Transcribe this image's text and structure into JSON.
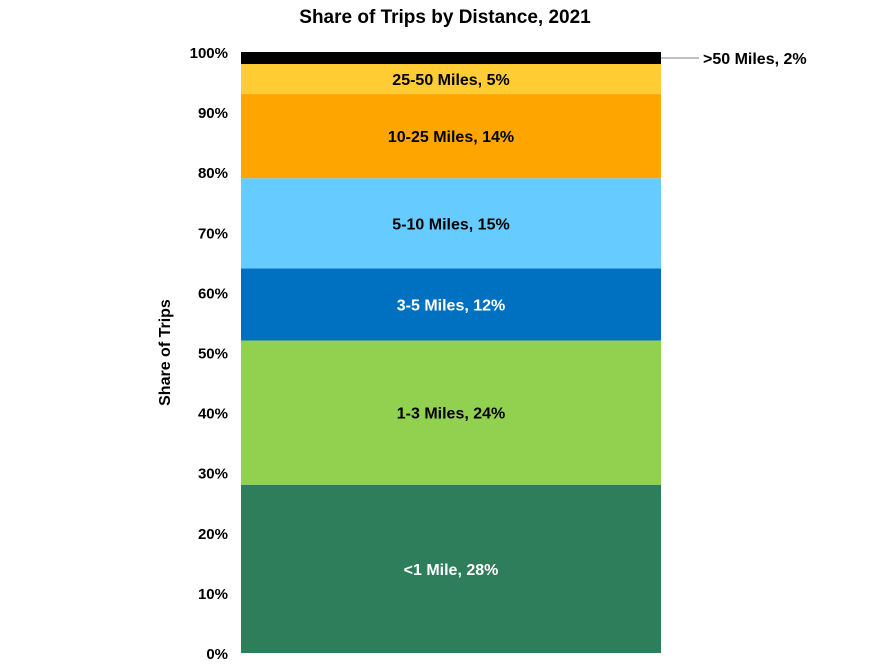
{
  "chart_data": {
    "type": "bar",
    "stacked": true,
    "percent": true,
    "title": "Share of Trips by Distance, 2021",
    "xlabel": "",
    "ylabel": "Share of Trips",
    "ylim": [
      0,
      100
    ],
    "yticks": [
      "0%",
      "10%",
      "20%",
      "30%",
      "40%",
      "50%",
      "60%",
      "70%",
      "80%",
      "90%",
      "100%"
    ],
    "grid": false,
    "legend": "none",
    "categories": [
      ""
    ],
    "series": [
      {
        "name": "<1 Mile",
        "values": [
          28
        ],
        "label": "<1 Mile, 28%",
        "color": "#2e7d5b",
        "label_color": "#ffffff",
        "label_position": "inside"
      },
      {
        "name": "1-3 Miles",
        "values": [
          24
        ],
        "label": "1-3 Miles, 24%",
        "color": "#92d050",
        "label_color": "#000000",
        "label_position": "inside"
      },
      {
        "name": "3-5 Miles",
        "values": [
          12
        ],
        "label": "3-5 Miles, 12%",
        "color": "#0070c0",
        "label_color": "#ffffff",
        "label_position": "inside"
      },
      {
        "name": "5-10 Miles",
        "values": [
          15
        ],
        "label": "5-10 Miles, 15%",
        "color": "#66ccff",
        "label_color": "#000000",
        "label_position": "inside"
      },
      {
        "name": "10-25 Miles",
        "values": [
          14
        ],
        "label": "10-25 Miles, 14%",
        "color": "#ffa500",
        "label_color": "#000000",
        "label_position": "inside"
      },
      {
        "name": "25-50 Miles",
        "values": [
          5
        ],
        "label": "25-50 Miles, 5%",
        "color": "#ffcc33",
        "label_color": "#000000",
        "label_position": "inside"
      },
      {
        "name": ">50 Miles",
        "values": [
          2
        ],
        "label": ">50 Miles, 2%",
        "color": "#000000",
        "label_color": "#000000",
        "label_position": "outside-right"
      }
    ]
  }
}
